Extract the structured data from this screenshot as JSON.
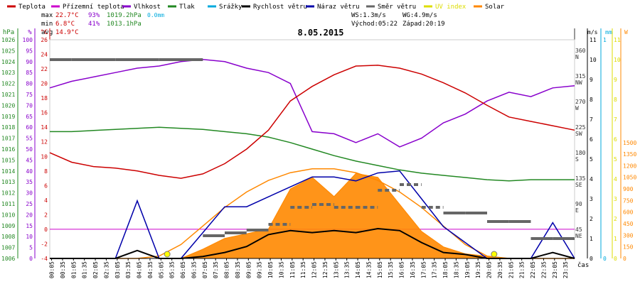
{
  "legend": [
    {
      "label": "Teplota",
      "color": "#cc0000"
    },
    {
      "label": "Přízemní teplota",
      "color": "#cc00cc"
    },
    {
      "label": "Vlhkost",
      "color": "#8800cc"
    },
    {
      "label": "Tlak",
      "color": "#228822"
    },
    {
      "label": "Srážky",
      "color": "#00aadd"
    },
    {
      "label": "Rychlost větru",
      "color": "#000000"
    },
    {
      "label": "Náraz větru",
      "color": "#0000aa"
    },
    {
      "label": "Směr větru",
      "color": "#666666"
    },
    {
      "label": "UV index",
      "color": "#dddd00"
    },
    {
      "label": "Solar",
      "color": "#ff8800"
    }
  ],
  "stats": {
    "max_label": "max",
    "max_temp": "22.7°C",
    "max_hum": "93%",
    "max_press": "1019.2hPa",
    "max_rain": "0.0mm",
    "min_label": "min",
    "min_temp": "6.8°C",
    "min_hum": "41%",
    "min_press": "1013.1hPa",
    "avg_label": "avg",
    "avg_temp": "14.9°C",
    "ws": "WS:1.3m/s",
    "wg": "WG:4.9m/s",
    "sunrise": "Východ:05:22",
    "sunset": "Západ:20:19"
  },
  "chart_data": {
    "type": "line",
    "title": "8.05.2015",
    "xlabel": "čas",
    "x_ticks": [
      "00:05",
      "00:35",
      "01:05",
      "01:35",
      "02:05",
      "02:35",
      "03:05",
      "03:35",
      "04:05",
      "04:35",
      "05:05",
      "05:35",
      "06:05",
      "06:35",
      "07:05",
      "07:35",
      "08:05",
      "08:35",
      "09:05",
      "09:35",
      "10:05",
      "10:35",
      "11:05",
      "11:35",
      "12:05",
      "12:35",
      "13:05",
      "13:35",
      "14:05",
      "14:35",
      "15:05",
      "15:35",
      "16:05",
      "16:35",
      "17:05",
      "17:35",
      "18:05",
      "18:35",
      "19:05",
      "19:35",
      "20:05",
      "20:35",
      "21:05",
      "21:35",
      "22:05",
      "22:35",
      "23:05",
      "23:35"
    ],
    "axes": {
      "pressure": {
        "unit": "hPa",
        "ticks": [
          1006,
          1007,
          1008,
          1009,
          1010,
          1011,
          1012,
          1013,
          1014,
          1015,
          1016,
          1017,
          1018,
          1019,
          1020,
          1021,
          1022,
          1023,
          1024,
          1025,
          1026
        ],
        "color": "#228822"
      },
      "humidity": {
        "unit": "%",
        "ticks": [
          0,
          5,
          10,
          15,
          20,
          25,
          30,
          35,
          40,
          45,
          50,
          55,
          60,
          65,
          70,
          75,
          80,
          85,
          90,
          95,
          100
        ],
        "color": "#8800cc"
      },
      "temperature": {
        "unit": "°C",
        "ticks": [
          -4,
          -2,
          0,
          2,
          4,
          6,
          8,
          10,
          12,
          14,
          16,
          18,
          20,
          22,
          24,
          26
        ],
        "color": "#cc0000"
      },
      "direction": {
        "unit": "",
        "ticks": [
          "",
          "45 NE",
          "90 E",
          "135 SE",
          "180 S",
          "225 SW",
          "270 W",
          "315 NW",
          "360 N"
        ],
        "color": "#333333"
      },
      "wind": {
        "unit": "m/s",
        "ticks": [
          0,
          1,
          2,
          3,
          4,
          5,
          6,
          7,
          8,
          9,
          10,
          11
        ],
        "color": "#000000"
      },
      "rain": {
        "unit": "mm",
        "ticks": [
          0,
          1
        ],
        "color": "#00aadd"
      },
      "uv": {
        "unit": "",
        "ticks": [
          0,
          1,
          2,
          3,
          4,
          5,
          6,
          7,
          8,
          9,
          10,
          11
        ],
        "color": "#dddd00"
      },
      "solar": {
        "unit": "W",
        "ticks": [
          0,
          150,
          300,
          450,
          600,
          750,
          900,
          1050,
          1200,
          1350,
          1500
        ],
        "color": "#ff8800"
      }
    },
    "hours": [
      0,
      1,
      2,
      3,
      4,
      5,
      6,
      7,
      8,
      9,
      10,
      11,
      12,
      13,
      14,
      15,
      16,
      17,
      18,
      19,
      20,
      21,
      22,
      23,
      24
    ],
    "series": [
      {
        "name": "Teplota",
        "axis": "temperature",
        "color": "#cc0000",
        "values": [
          10.5,
          9.2,
          8.6,
          8.4,
          8.0,
          7.4,
          7.0,
          7.6,
          9.0,
          11.0,
          13.6,
          17.6,
          19.6,
          21.2,
          22.4,
          22.5,
          22.1,
          21.3,
          20.1,
          18.7,
          17.0,
          15.4,
          14.8,
          14.2,
          13.6
        ]
      },
      {
        "name": "Vlhkost",
        "axis": "humidity",
        "color": "#8800cc",
        "values": [
          78,
          81,
          83,
          85,
          87,
          88,
          90,
          91,
          90,
          87,
          85,
          80,
          58,
          57,
          53,
          57,
          51,
          55,
          62,
          66,
          72,
          76,
          74,
          78,
          79
        ]
      },
      {
        "name": "Tlak",
        "axis": "pressure",
        "color": "#228822",
        "values": [
          1017.6,
          1017.6,
          1017.7,
          1017.8,
          1017.9,
          1018.0,
          1017.9,
          1017.8,
          1017.6,
          1017.4,
          1017.1,
          1016.6,
          1016.0,
          1015.4,
          1014.9,
          1014.5,
          1014.1,
          1013.8,
          1013.6,
          1013.4,
          1013.2,
          1013.1,
          1013.2,
          1013.2,
          1013.2
        ]
      },
      {
        "name": "Rychlost větru",
        "axis": "wind",
        "color": "#000000",
        "values": [
          0,
          0,
          0,
          0,
          0.4,
          0,
          0,
          0.1,
          0.3,
          0.6,
          1.2,
          1.4,
          1.3,
          1.4,
          1.3,
          1.5,
          1.4,
          0.8,
          0.3,
          0.2,
          0,
          0,
          0,
          0.3,
          0
        ]
      },
      {
        "name": "Náraz větru",
        "axis": "wind",
        "color": "#0000aa",
        "values": [
          0,
          0,
          0,
          0,
          2.9,
          0,
          0,
          1.3,
          2.6,
          2.6,
          3.1,
          3.6,
          4.1,
          4.1,
          3.9,
          4.3,
          4.4,
          3.0,
          1.6,
          0.8,
          0,
          0,
          0,
          1.8,
          0
        ]
      },
      {
        "name": "Směr větru",
        "axis": "direction",
        "color": "#666666",
        "values": [
          350,
          350,
          350,
          350,
          350,
          350,
          350,
          40,
          45,
          50,
          60,
          90,
          95,
          90,
          90,
          120,
          130,
          90,
          80,
          80,
          65,
          65,
          35,
          35,
          35
        ]
      },
      {
        "name": "Solar",
        "axis": "solar",
        "color": "#ff8800",
        "values": [
          0,
          0,
          0,
          0,
          0,
          0,
          0,
          120,
          260,
          320,
          380,
          900,
          1050,
          800,
          1100,
          1050,
          700,
          350,
          150,
          60,
          30,
          0,
          0,
          0,
          0
        ]
      },
      {
        "name": "Solar max",
        "axis": "solar",
        "color": "#ff8800",
        "values": [
          0,
          0,
          0,
          0,
          0,
          30,
          180,
          420,
          660,
          860,
          1010,
          1110,
          1160,
          1160,
          1110,
          1010,
          860,
          660,
          420,
          180,
          30,
          0,
          0,
          0,
          0
        ]
      },
      {
        "name": "UV index",
        "axis": "uv",
        "color": "#dddd00",
        "values": []
      }
    ]
  }
}
